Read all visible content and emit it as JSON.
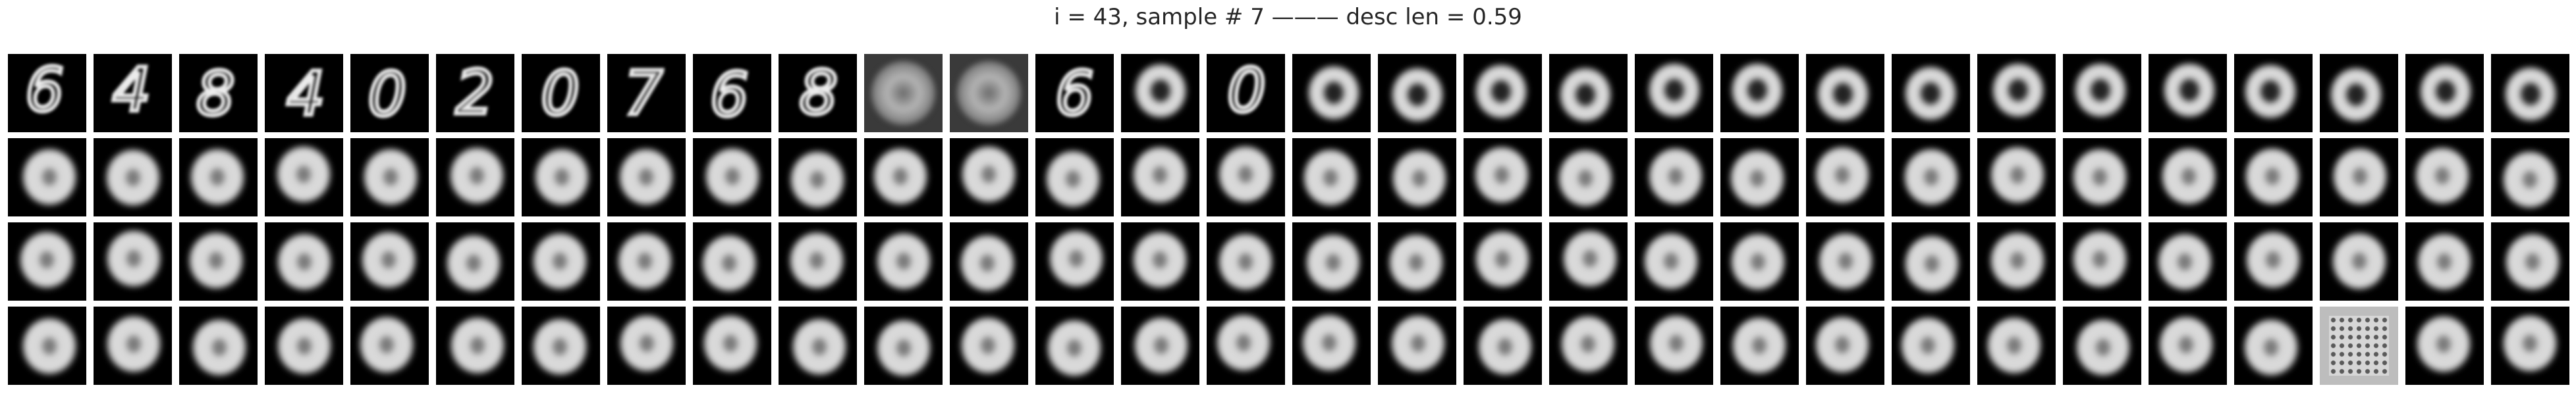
{
  "figure": {
    "title": "i = 43, sample # 7 ——— desc len = 0.59"
  },
  "grid": {
    "rows": 4,
    "columns": 30,
    "tiles": [
      [
        {
          "kind": "digit",
          "glyph": "6"
        },
        {
          "kind": "digit",
          "glyph": "4"
        },
        {
          "kind": "digit",
          "glyph": "8"
        },
        {
          "kind": "digit",
          "glyph": "4"
        },
        {
          "kind": "digit",
          "glyph": "0"
        },
        {
          "kind": "digit",
          "glyph": "2"
        },
        {
          "kind": "digit",
          "glyph": "0"
        },
        {
          "kind": "digit",
          "glyph": "7"
        },
        {
          "kind": "digit",
          "glyph": "6"
        },
        {
          "kind": "digit",
          "glyph": "8"
        },
        {
          "kind": "noisy"
        },
        {
          "kind": "noisy"
        },
        {
          "kind": "digit",
          "glyph": "6"
        },
        {
          "kind": "ring"
        },
        {
          "kind": "digit",
          "glyph": "0"
        },
        {
          "kind": "ring"
        },
        {
          "kind": "ring"
        },
        {
          "kind": "ring"
        },
        {
          "kind": "ring"
        },
        {
          "kind": "ring"
        },
        {
          "kind": "ring"
        },
        {
          "kind": "ring"
        },
        {
          "kind": "ring"
        },
        {
          "kind": "ring"
        },
        {
          "kind": "ring"
        },
        {
          "kind": "ring"
        },
        {
          "kind": "ring"
        },
        {
          "kind": "ring"
        },
        {
          "kind": "ring"
        },
        {
          "kind": "ring"
        }
      ],
      "blob-row",
      "blob-row",
      [
        "blob",
        "blob",
        "blob",
        "blob",
        "blob",
        "blob",
        "blob",
        "blob",
        "blob",
        "blob",
        "blob",
        "blob",
        "blob",
        "blob",
        "blob",
        "blob",
        "blob",
        "blob",
        "blob",
        "blob",
        "blob",
        "blob",
        "blob",
        "blob",
        "blob",
        "blob",
        "blob",
        {
          "kind": "artifact"
        },
        "blob",
        "blob"
      ]
    ]
  }
}
